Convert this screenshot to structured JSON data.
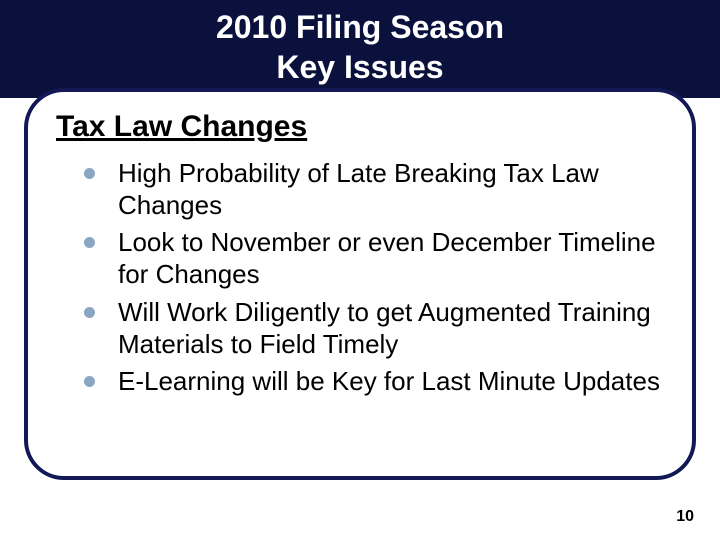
{
  "slide": {
    "title_line1": "2010 Filing Season",
    "title_line2": "Key Issues",
    "subheading": "Tax Law Changes",
    "bullets": [
      "High Probability of Late Breaking Tax Law Changes",
      "Look to November or even December Timeline for Changes",
      "Will Work Diligently to get Augmented Training Materials to Field Timely",
      "E-Learning will be Key for Last Minute Updates"
    ],
    "page_number": "10"
  },
  "style": {
    "background_color": "#ffffff",
    "title_bar_bg": "#0b113d",
    "title_text_color": "#ffffff",
    "title_fontsize": 32,
    "title_underline_color": "#ffffff",
    "frame_border_color": "#131955",
    "frame_border_width": 4,
    "frame_border_radius": 40,
    "subheading_fontsize": 30,
    "subheading_color": "#000000",
    "bullet_fontsize": 26,
    "bullet_text_color": "#000000",
    "bullet_marker_color": "#8aa6c1",
    "bullet_marker_diameter": 11,
    "page_number_fontsize": 16,
    "page_number_color": "#000000",
    "slide_width": 720,
    "slide_height": 540
  }
}
